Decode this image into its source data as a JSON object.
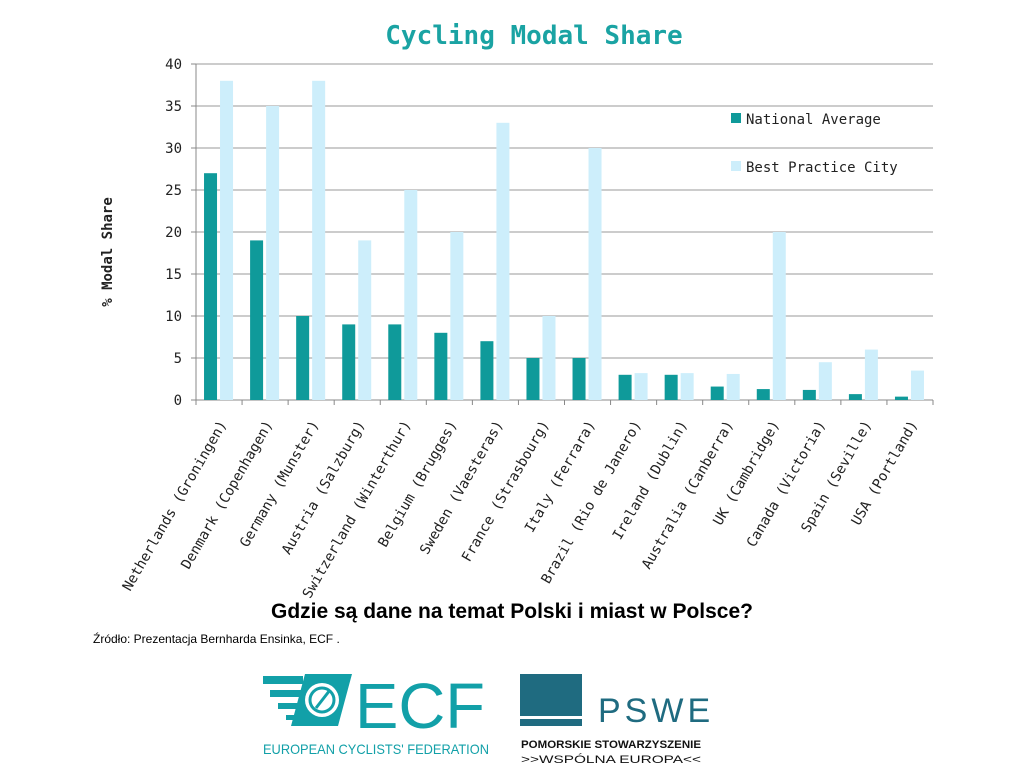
{
  "chart_data": {
    "type": "bar",
    "title": "Cycling Modal Share",
    "xlabel": "",
    "ylabel": "% Modal Share",
    "ylim": [
      0,
      40
    ],
    "yticks": [
      0,
      5,
      10,
      15,
      20,
      25,
      30,
      35,
      40
    ],
    "grid": true,
    "legend_position": "top-right",
    "categories": [
      "Netherlands (Groningen)",
      "Denmark (Copenhagen)",
      "Germany (Munster)",
      "Austria (Salzburg)",
      "Switzerland (Winterthur)",
      "Belgium (Brugges)",
      "Sweden (Vaesteras)",
      "France (Strasbourg)",
      "Italy (Ferrara)",
      "Brazil (Rio de Janero)",
      "Ireland (Dublin)",
      "Australia (Canberra)",
      "UK (Cambridge)",
      "Canada (Victoria)",
      "Spain (Seville)",
      "USA (Portland)"
    ],
    "series": [
      {
        "name": "National Average",
        "color": "#0f9a9a",
        "values": [
          27,
          19,
          10,
          9,
          9,
          8,
          7,
          5,
          5,
          3,
          3,
          1.6,
          1.3,
          1.2,
          0.7,
          0.4
        ]
      },
      {
        "name": "Best Practice City",
        "color": "#cdeefb",
        "values": [
          38,
          35,
          38,
          19,
          25,
          20,
          33,
          10,
          30,
          3.2,
          3.2,
          3.1,
          20,
          4.5,
          6,
          3.5
        ]
      }
    ]
  },
  "footer": {
    "question": "Gdzie są dane na temat Polski i miast w Polsce?",
    "source": "Źródło: Prezentacja Bernharda Ensinka, ECF ."
  },
  "logos": {
    "ecf": {
      "mark": "ECF",
      "name": "EUROPEAN CYCLISTS' FEDERATION",
      "color": "#12a0a8"
    },
    "pswe": {
      "mark": "PSWE",
      "line1": "POMORSKIE STOWARZYSZENIE",
      "line2": ">>WSPÓLNA EUROPA<<",
      "color": "#1f6b80"
    }
  }
}
